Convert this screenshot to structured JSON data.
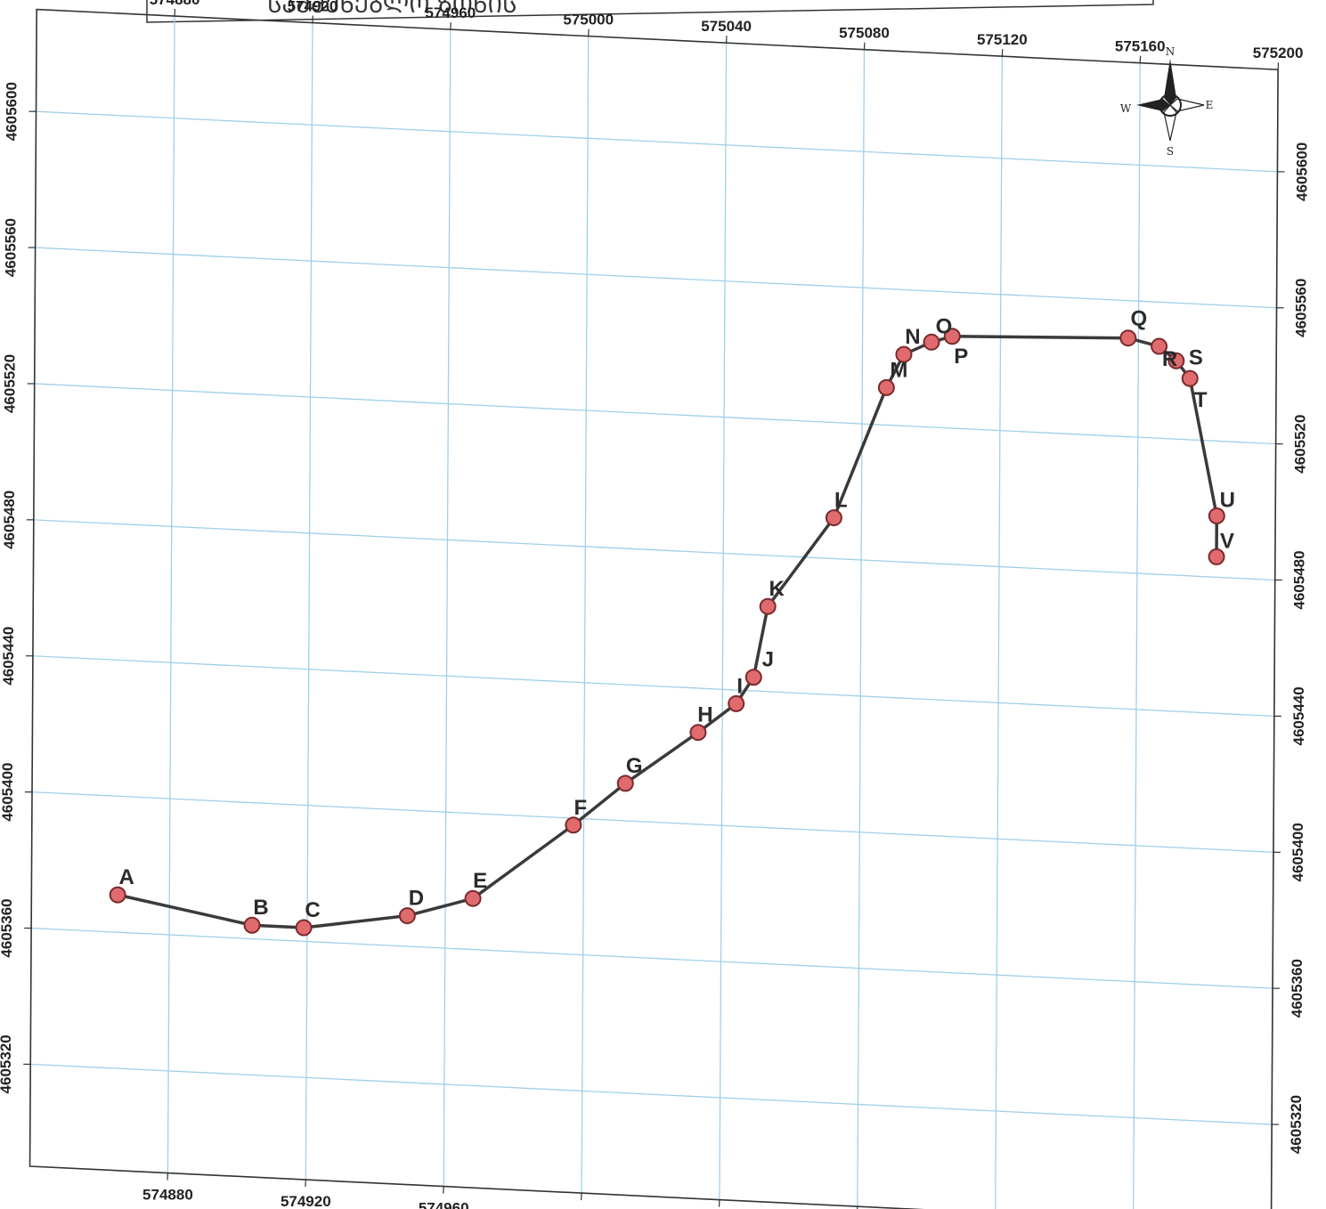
{
  "title_fragment": "ᲡᲐᲛᲨᲔᲜᲔᲑᲚᲝ ᲖᲝᲜᲘᲡ",
  "colors": {
    "grid": "#9fd0ea",
    "frame": "#333333",
    "route": "#3a3a3a",
    "point_fill": "#e06b6e",
    "point_stroke": "#7a2a2c"
  },
  "map": {
    "x_axis_ticks": [
      "574880",
      "574920",
      "574960",
      "575000",
      "575040",
      "575080",
      "575120",
      "575160",
      "575200"
    ],
    "y_axis_ticks": [
      "4605600",
      "4605560",
      "4605520",
      "4605480",
      "4605440",
      "4605400",
      "4605360",
      "4605320"
    ],
    "compass": {
      "n": "N",
      "s": "S",
      "e": "E",
      "w": "W"
    },
    "points": [
      {
        "label": "A",
        "x": 574865,
        "y": 4605371
      },
      {
        "label": "B",
        "x": 574904,
        "y": 4605364
      },
      {
        "label": "C",
        "x": 574919,
        "y": 4605364
      },
      {
        "label": "D",
        "x": 574949,
        "y": 4605369
      },
      {
        "label": "E",
        "x": 574968,
        "y": 4605375
      },
      {
        "label": "F",
        "x": 574997,
        "y": 4605398
      },
      {
        "label": "G",
        "x": 575012,
        "y": 4605411
      },
      {
        "label": "H",
        "x": 575033,
        "y": 4605427
      },
      {
        "label": "I",
        "x": 575044,
        "y": 4605436
      },
      {
        "label": "J",
        "x": 575049,
        "y": 4605444
      },
      {
        "label": "K",
        "x": 575053,
        "y": 4605465
      },
      {
        "label": "L",
        "x": 575072,
        "y": 4605492
      },
      {
        "label": "M",
        "x": 575087,
        "y": 4605531
      },
      {
        "label": "N",
        "x": 575092,
        "y": 4605541
      },
      {
        "label": "O",
        "x": 575100,
        "y": 4605545
      },
      {
        "label": "P",
        "x": 575106,
        "y": 4605547
      },
      {
        "label": "Q",
        "x": 575157,
        "y": 4605549
      },
      {
        "label": "R",
        "x": 575166,
        "y": 4605547
      },
      {
        "label": "S",
        "x": 575171,
        "y": 4605543
      },
      {
        "label": "T",
        "x": 575175,
        "y": 4605538
      },
      {
        "label": "U",
        "x": 575183,
        "y": 4605498
      },
      {
        "label": "V",
        "x": 575183,
        "y": 4605486
      }
    ]
  }
}
